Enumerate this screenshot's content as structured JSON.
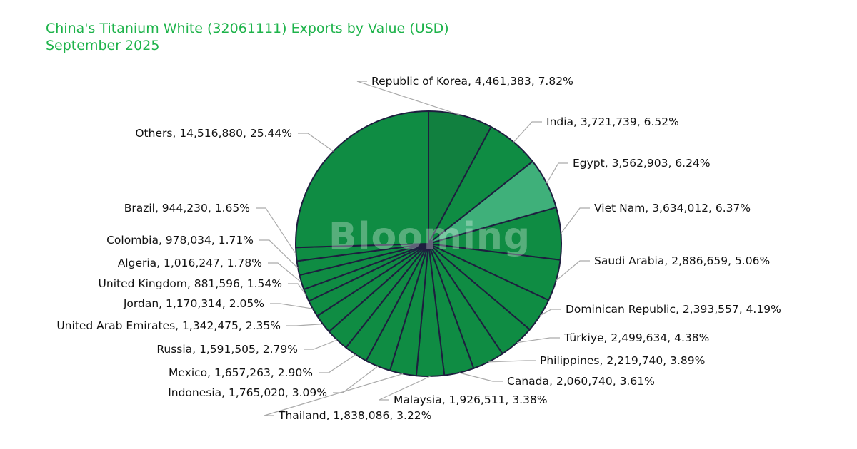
{
  "header": {
    "title_line1": "China's Titanium White (32061111) Exports by Value (USD)",
    "title_line2": "September 2025"
  },
  "watermark": "Blooming",
  "colors": {
    "title": "#1db34a",
    "slice_default": "#0f8c43",
    "slice_korea": "#11803f",
    "slice_egypt": "#3fb07a",
    "slice_border": "#1e1e3f",
    "leader_line": "#aaaaaa"
  },
  "chart_data": {
    "type": "pie",
    "title": "China's Titanium White (32061111) Exports by Value (USD) September 2025",
    "start_angle": "12 o'clock",
    "direction": "clockwise",
    "categories": [
      "Republic of Korea",
      "India",
      "Egypt",
      "Viet Nam",
      "Saudi Arabia",
      "Dominican Republic",
      "Türkiye",
      "Philippines",
      "Canada",
      "Malaysia",
      "Thailand",
      "Indonesia",
      "Mexico",
      "Russia",
      "United Arab Emirates",
      "Jordan",
      "United Kingdom",
      "Algeria",
      "Colombia",
      "Brazil",
      "Others"
    ],
    "values": [
      4461383,
      3721739,
      3562903,
      3634012,
      2886659,
      2393557,
      2499634,
      2219740,
      2060740,
      1926511,
      1838086,
      1765020,
      1657263,
      1591505,
      1342475,
      1170314,
      881596,
      1016247,
      978034,
      944230,
      14516880
    ],
    "percentages": [
      7.82,
      6.52,
      6.24,
      6.37,
      5.06,
      4.19,
      4.38,
      3.89,
      3.61,
      3.38,
      3.22,
      3.09,
      2.9,
      2.79,
      2.35,
      2.05,
      1.54,
      1.78,
      1.71,
      1.65,
      25.44
    ],
    "labels": [
      "Republic of Korea, 4,461,383, 7.82%",
      "India, 3,721,739, 6.52%",
      "Egypt, 3,562,903, 6.24%",
      "Viet Nam, 3,634,012, 6.37%",
      "Saudi Arabia, 2,886,659, 5.06%",
      "Dominican Republic, 2,393,557, 4.19%",
      "Türkiye, 2,499,634, 4.38%",
      "Philippines, 2,219,740, 3.89%",
      "Canada, 2,060,740, 3.61%",
      "Malaysia, 1,926,511, 3.38%",
      "Thailand, 1,838,086, 3.22%",
      "Indonesia, 1,765,020, 3.09%",
      "Mexico, 1,657,263, 2.90%",
      "Russia, 1,591,505, 2.79%",
      "United Arab Emirates, 1,342,475, 2.35%",
      "Jordan, 1,170,314, 2.05%",
      "United Kingdom, 881,596, 1.54%",
      "Algeria, 1,016,247, 1.78%",
      "Colombia, 978,034, 1.71%",
      "Brazil, 944,230, 1.65%",
      "Others, 14,516,880, 25.44%"
    ]
  }
}
